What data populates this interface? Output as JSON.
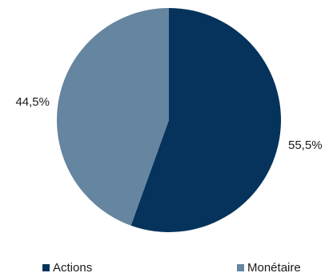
{
  "chart_data": {
    "type": "pie",
    "categories": [
      "Actions",
      "Monétaire"
    ],
    "values": [
      55.5,
      44.5
    ],
    "value_labels": [
      "55,5%",
      "44,5%"
    ],
    "colors": [
      "#05335b",
      "#6585a0"
    ],
    "start": "12 o'clock",
    "direction": "clockwise",
    "legend": "bottom"
  },
  "legend": {
    "items": [
      {
        "label": "Actions",
        "color": "#05335b"
      },
      {
        "label": "Monétaire",
        "color": "#6585a0"
      }
    ]
  }
}
